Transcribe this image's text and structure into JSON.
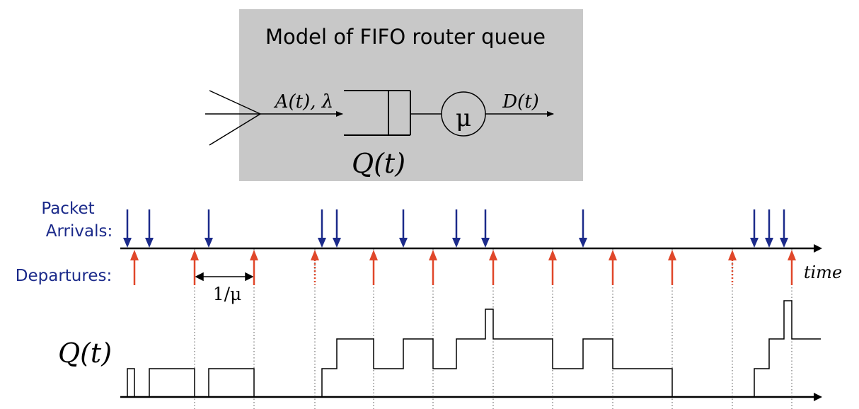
{
  "title": "Model of FIFO router queue",
  "model": {
    "arrival_label": "A(t), λ",
    "server_label": "μ",
    "departure_label": "D(t)",
    "queue_label": "Q(t)"
  },
  "timeline": {
    "arrivals_label_line1": "Packet",
    "arrivals_label_line2": "Arrivals:",
    "departures_label": "Departures:",
    "time_label": "time",
    "service_time_label": "1/μ",
    "queue_axis_label": "Q(t)"
  },
  "colors": {
    "arrival": "#1b2a8a",
    "departure": "#e0472a",
    "box_fill": "#c8c8c8",
    "label_text": "#1b2a8a"
  }
}
